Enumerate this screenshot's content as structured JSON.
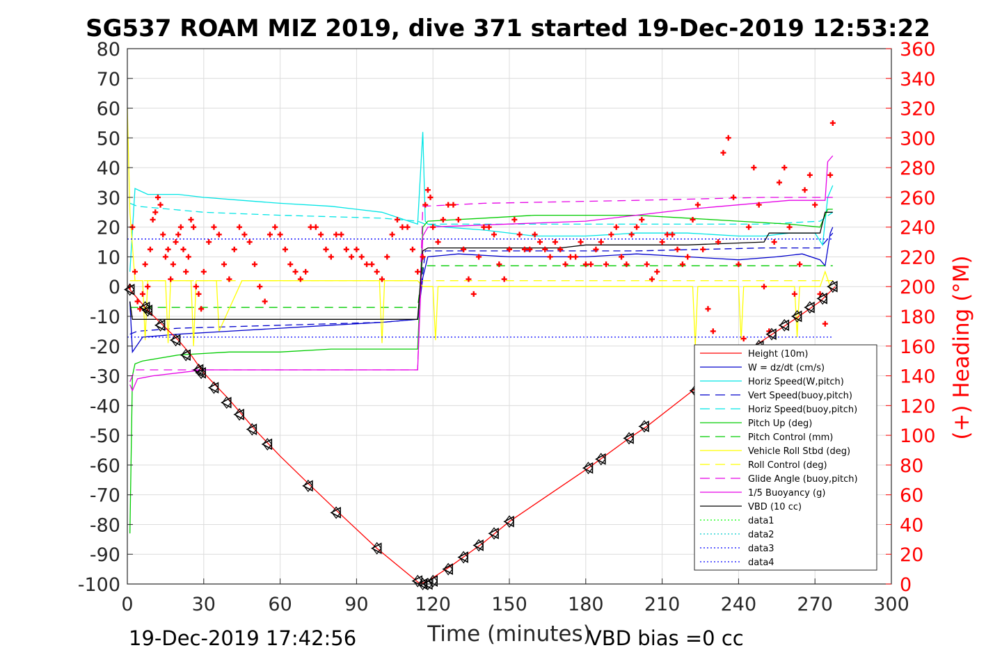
{
  "chart_data": {
    "type": "line",
    "title": "SG537 ROAM MIZ 2019, dive 371 started 19-Dec-2019 12:53:22",
    "xlabel": "Time (minutes)",
    "ylabel_right": "(+) Heading (°M)",
    "footer_left": "19-Dec-2019 17:42:56",
    "footer_right": "VBD bias =0 cc",
    "xlim": [
      0,
      300
    ],
    "ylim": [
      -100,
      80
    ],
    "ylim_right": [
      0,
      360
    ],
    "x_ticks": [
      0,
      30,
      60,
      90,
      120,
      150,
      180,
      210,
      240,
      270,
      300
    ],
    "y_ticks": [
      -100,
      -90,
      -80,
      -70,
      -60,
      -50,
      -40,
      -30,
      -20,
      -10,
      0,
      10,
      20,
      30,
      40,
      50,
      60,
      70,
      80
    ],
    "y_ticks_right": [
      0,
      20,
      40,
      60,
      80,
      100,
      120,
      140,
      160,
      180,
      200,
      220,
      240,
      260,
      280,
      300,
      320,
      340,
      360
    ],
    "grid": true,
    "legend_position": "bottom-right",
    "legend": [
      {
        "label": "Height (10m)",
        "color": "#ff0000",
        "dash": ""
      },
      {
        "label": "W = dz/dt (cm/s)",
        "color": "#0000cc",
        "dash": ""
      },
      {
        "label": "Horiz Speed(W,pitch)",
        "color": "#00e5e5",
        "dash": ""
      },
      {
        "label": "Vert Speed(buoy,pitch)",
        "color": "#0000cc",
        "dash": "14 8"
      },
      {
        "label": "Horiz Speed(buoy,pitch)",
        "color": "#00e5e5",
        "dash": "14 8"
      },
      {
        "label": "Pitch Up (deg)",
        "color": "#00cc00",
        "dash": ""
      },
      {
        "label": "Pitch Control (mm)",
        "color": "#00cc00",
        "dash": "14 8"
      },
      {
        "label": "Vehicle Roll Stbd (deg)",
        "color": "#ffff00",
        "dash": ""
      },
      {
        "label": "Roll Control (deg)",
        "color": "#ffff00",
        "dash": "14 8"
      },
      {
        "label": "Glide Angle (buoy,pitch)",
        "color": "#e600e6",
        "dash": "14 8"
      },
      {
        "label": "1/5 Buoyancy (g)",
        "color": "#e600e6",
        "dash": ""
      },
      {
        "label": "VBD (10 cc)",
        "color": "#000000",
        "dash": ""
      },
      {
        "label": "data1",
        "color": "#00ff00",
        "dash": "2 3"
      },
      {
        "label": "data2",
        "color": "#00cccc",
        "dash": "2 3"
      },
      {
        "label": "data3",
        "color": "#0000ff",
        "dash": "2 3"
      },
      {
        "label": "data4",
        "color": "#0000ff",
        "dash": "2 3"
      }
    ],
    "series": [
      {
        "name": "Height (10m)",
        "color": "#ff0000",
        "dash": "",
        "x": [
          0,
          8,
          14,
          20,
          25,
          30,
          40,
          50,
          60,
          72,
          83,
          98,
          115,
          118,
          127,
          140,
          150,
          181,
          197,
          204,
          222,
          235,
          248,
          262,
          272,
          278
        ],
        "y": [
          0,
          -8,
          -13,
          -18,
          -23,
          -29,
          -38,
          -48,
          -57,
          -67,
          -76,
          -88,
          -100,
          -99,
          -94,
          -86,
          -79,
          -61,
          -51,
          -47,
          -35,
          -27,
          -19,
          -11,
          -5,
          0
        ]
      },
      {
        "name": "W = dz/dt (cm/s)",
        "color": "#0000cc",
        "dash": "",
        "x": [
          1,
          2,
          6,
          20,
          40,
          60,
          80,
          100,
          114,
          116,
          118,
          130,
          150,
          180,
          200,
          220,
          240,
          255,
          265,
          272,
          274,
          276,
          277
        ],
        "y": [
          -5,
          -22,
          -17,
          -16,
          -15,
          -14,
          -13,
          -12,
          -11,
          3,
          10,
          11,
          10,
          10,
          11,
          10,
          9,
          10,
          11,
          9,
          7,
          18,
          20
        ]
      },
      {
        "name": "Horiz Speed(W,pitch)",
        "color": "#00e5e5",
        "dash": "",
        "x": [
          1,
          3,
          8,
          20,
          30,
          45,
          60,
          80,
          100,
          114,
          116,
          117,
          118,
          125,
          140,
          160,
          180,
          200,
          220,
          240,
          250,
          260,
          270,
          273,
          275,
          277
        ],
        "y": [
          5,
          33,
          31,
          31,
          30,
          29,
          28,
          27,
          25,
          21,
          52,
          22,
          21,
          20,
          19,
          17,
          17,
          18,
          18,
          17,
          17,
          18,
          18,
          14,
          30,
          34
        ]
      },
      {
        "name": "Vert Speed(buoy,pitch)",
        "color": "#0000cc",
        "dash": "10 6",
        "x": [
          1,
          4,
          20,
          60,
          100,
          114,
          117,
          150,
          200,
          250,
          272,
          277
        ],
        "y": [
          -16,
          -15,
          -14,
          -13,
          -12,
          -11,
          12,
          12,
          12,
          13,
          13,
          18
        ]
      },
      {
        "name": "Horiz Speed(buoy,pitch)",
        "color": "#00e5e5",
        "dash": "10 6",
        "x": [
          1,
          4,
          30,
          60,
          100,
          114,
          117,
          150,
          200,
          250,
          272,
          277
        ],
        "y": [
          28,
          27,
          25,
          24,
          23,
          22,
          21,
          21,
          21,
          21,
          22,
          25
        ]
      },
      {
        "name": "Pitch Up (deg)",
        "color": "#00cc00",
        "dash": "",
        "x": [
          1,
          2,
          3,
          6,
          20,
          40,
          60,
          80,
          100,
          114,
          116,
          118,
          140,
          160,
          180,
          200,
          220,
          240,
          260,
          272,
          275,
          277
        ],
        "y": [
          -83,
          -30,
          -26,
          -25,
          -23,
          -22,
          -22,
          -21,
          -21,
          -21,
          20,
          22,
          23,
          24,
          24,
          24,
          23,
          22,
          21,
          20,
          26,
          26
        ]
      },
      {
        "name": "Pitch Control (mm)",
        "color": "#00cc00",
        "dash": "12 8",
        "x": [
          1,
          114,
          116,
          277
        ],
        "y": [
          -7,
          -7,
          7,
          7
        ]
      },
      {
        "name": "Vehicle Roll Stbd (deg)",
        "color": "#ffff00",
        "dash": "",
        "x": [
          0,
          1,
          3,
          6,
          7,
          8,
          15,
          16,
          17,
          25,
          26,
          27,
          35,
          36,
          45,
          46,
          60,
          90,
          99,
          100,
          101,
          114,
          116,
          120,
          121,
          122,
          130,
          150,
          180,
          200,
          222,
          223,
          224,
          240,
          241,
          242,
          262,
          263,
          264,
          272,
          274,
          276
        ],
        "y": [
          60,
          25,
          2,
          2,
          -18,
          2,
          2,
          -19,
          2,
          2,
          -20,
          2,
          2,
          -15,
          2,
          2,
          2,
          2,
          2,
          -19,
          2,
          2,
          0,
          0,
          -18,
          0,
          0,
          0,
          0,
          0,
          0,
          -20,
          0,
          0,
          -18,
          0,
          0,
          -17,
          0,
          0,
          5,
          0
        ]
      },
      {
        "name": "Roll Control (deg)",
        "color": "#ffff00",
        "dash": "12 8",
        "x": [
          1,
          277
        ],
        "y": [
          2,
          2
        ]
      },
      {
        "name": "Glide Angle (buoy,pitch)",
        "color": "#e600e6",
        "dash": "12 8",
        "x": [
          1,
          3,
          114,
          116,
          140,
          200,
          250,
          277
        ],
        "y": [
          -32,
          -28,
          -28,
          27,
          28,
          29,
          30,
          30
        ]
      },
      {
        "name": "1/5 Buoyancy (g)",
        "color": "#e600e6",
        "dash": "",
        "x": [
          1,
          2,
          4,
          10,
          20,
          30,
          114,
          116,
          118,
          180,
          220,
          260,
          274,
          275,
          277
        ],
        "y": [
          -33,
          -35,
          -31,
          -30,
          -29,
          -28,
          -28,
          17,
          20,
          22,
          26,
          29,
          29,
          42,
          44
        ]
      },
      {
        "name": "VBD (10 cc)",
        "color": "#000000",
        "dash": "",
        "x": [
          1,
          2,
          4,
          114,
          116,
          118,
          170,
          180,
          200,
          220,
          250,
          252,
          272,
          274,
          277
        ],
        "y": [
          -5,
          -11,
          -11,
          -11,
          12,
          13,
          13,
          14,
          14,
          14,
          15,
          18,
          18,
          25,
          25
        ]
      },
      {
        "name": "data1",
        "color": "#00ff00",
        "dash": "2 3",
        "x": [
          0,
          1
        ],
        "y": [
          0,
          0
        ]
      },
      {
        "name": "data2",
        "color": "#00cccc",
        "dash": "2 3",
        "x": [
          0,
          1
        ],
        "y": [
          0,
          0
        ]
      },
      {
        "name": "data3",
        "color": "#0000ff",
        "dash": "2 3",
        "x": [
          0,
          277
        ],
        "y": [
          16,
          16
        ]
      },
      {
        "name": "data4",
        "color": "#0000ff",
        "dash": "2 3",
        "x": [
          0,
          277
        ],
        "y": [
          -17,
          -17
        ]
      }
    ],
    "heading_series": {
      "name": "(+) Heading (°M)",
      "color": "#ff0000",
      "marker": "+",
      "x": [
        1,
        2,
        3,
        4,
        5,
        6,
        7,
        8,
        9,
        10,
        11,
        12,
        13,
        14,
        15,
        16,
        17,
        18,
        19,
        20,
        21,
        22,
        23,
        24,
        25,
        26,
        27,
        28,
        29,
        30,
        32,
        34,
        36,
        38,
        40,
        42,
        44,
        46,
        48,
        50,
        52,
        54,
        56,
        58,
        60,
        62,
        64,
        66,
        68,
        70,
        72,
        74,
        76,
        78,
        80,
        82,
        84,
        86,
        88,
        90,
        92,
        94,
        96,
        98,
        100,
        102,
        104,
        106,
        108,
        110,
        112,
        114,
        116,
        117,
        118,
        119,
        120,
        122,
        124,
        126,
        128,
        130,
        132,
        134,
        136,
        138,
        140,
        142,
        144,
        146,
        148,
        150,
        152,
        154,
        156,
        158,
        160,
        162,
        164,
        166,
        168,
        170,
        172,
        174,
        176,
        178,
        180,
        182,
        184,
        186,
        188,
        190,
        192,
        194,
        196,
        198,
        200,
        202,
        204,
        206,
        208,
        210,
        212,
        214,
        216,
        218,
        220,
        222,
        224,
        226,
        228,
        230,
        232,
        234,
        236,
        238,
        240,
        242,
        244,
        246,
        248,
        250,
        252,
        254,
        256,
        258,
        260,
        262,
        264,
        266,
        268,
        270,
        272,
        274,
        276,
        277
      ],
      "y": [
        200,
        240,
        210,
        190,
        185,
        195,
        215,
        200,
        225,
        245,
        250,
        260,
        255,
        235,
        220,
        225,
        205,
        215,
        230,
        235,
        240,
        225,
        210,
        220,
        245,
        240,
        200,
        195,
        185,
        210,
        230,
        240,
        235,
        215,
        205,
        225,
        240,
        235,
        230,
        215,
        200,
        190,
        235,
        240,
        235,
        225,
        215,
        210,
        205,
        210,
        240,
        240,
        235,
        225,
        220,
        235,
        235,
        225,
        220,
        225,
        220,
        215,
        215,
        210,
        205,
        220,
        235,
        245,
        240,
        240,
        225,
        210,
        220,
        255,
        265,
        260,
        240,
        230,
        245,
        255,
        255,
        245,
        225,
        205,
        195,
        220,
        240,
        240,
        235,
        215,
        205,
        225,
        245,
        235,
        225,
        225,
        235,
        230,
        225,
        220,
        230,
        225,
        215,
        220,
        220,
        230,
        215,
        215,
        225,
        230,
        215,
        235,
        240,
        220,
        215,
        235,
        240,
        245,
        215,
        205,
        210,
        230,
        235,
        235,
        225,
        215,
        220,
        245,
        255,
        225,
        185,
        170,
        230,
        290,
        300,
        260,
        215,
        165,
        240,
        280,
        255,
        200,
        170,
        230,
        270,
        280,
        240,
        195,
        215,
        265,
        275,
        255,
        195,
        175,
        275,
        310
      ]
    },
    "depth_markers": {
      "name": "dive markers",
      "color": "#000000",
      "x": [
        1,
        7,
        8,
        13,
        19,
        23,
        28,
        29,
        34,
        39,
        44,
        49,
        55,
        71,
        82,
        98,
        114,
        116,
        118,
        120,
        126,
        132,
        138,
        144,
        150,
        181,
        186,
        197,
        203,
        223,
        235,
        248,
        253,
        258,
        263,
        268,
        273,
        277
      ],
      "y": [
        -1,
        -7,
        -8,
        -13,
        -18,
        -23,
        -28,
        -29,
        -34,
        -39,
        -43,
        -48,
        -53,
        -67,
        -76,
        -88,
        -99,
        -100,
        -100,
        -99,
        -95,
        -91,
        -87,
        -83,
        -79,
        -61,
        -58,
        -51,
        -47,
        -35,
        -28,
        -20,
        -16,
        -13,
        -10,
        -7,
        -4,
        0
      ]
    }
  }
}
